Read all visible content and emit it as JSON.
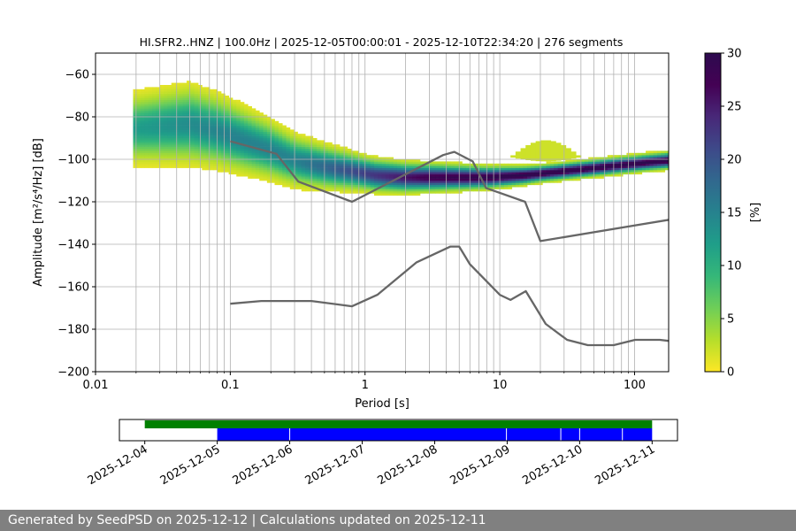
{
  "chart_data": [
    {
      "type": "heatmap",
      "title": "HI.SFR2..HNZ | 100.0Hz | 2025-12-05T00:00:01 - 2025-12-10T22:34:20 | 276 segments",
      "xlabel": "Period [s]",
      "ylabel": "Amplitude [m²/s⁴/Hz] [dB]",
      "x_scale": "log",
      "xlim": [
        0.01,
        179
      ],
      "ylim": [
        -200,
        -50
      ],
      "x_ticks": [
        {
          "value": 0.01,
          "label": "0.01"
        },
        {
          "value": 0.1,
          "label": "0.1"
        },
        {
          "value": 1,
          "label": "1"
        },
        {
          "value": 10,
          "label": "10"
        },
        {
          "value": 100,
          "label": "100"
        }
      ],
      "y_ticks": [
        {
          "value": -200,
          "label": "−200"
        },
        {
          "value": -180,
          "label": "−180"
        },
        {
          "value": -160,
          "label": "−160"
        },
        {
          "value": -140,
          "label": "−140"
        },
        {
          "value": -120,
          "label": "−120"
        },
        {
          "value": -100,
          "label": "−100"
        },
        {
          "value": -80,
          "label": "−80"
        },
        {
          "value": -60,
          "label": "−60"
        }
      ],
      "grid_periods": [
        0.02,
        0.03,
        0.04,
        0.05,
        0.06,
        0.07,
        0.08,
        0.09,
        0.2,
        0.3,
        0.4,
        0.5,
        0.6,
        0.7,
        0.8,
        0.9,
        2,
        3,
        4,
        5,
        6,
        7,
        8,
        9,
        20,
        30,
        40,
        50,
        60,
        70,
        80,
        90
      ],
      "colorbar": {
        "label": "[%]",
        "range": [
          0,
          30
        ],
        "ticks": [
          {
            "value": 0,
            "label": "0"
          },
          {
            "value": 5,
            "label": "5"
          },
          {
            "value": 10,
            "label": "10"
          },
          {
            "value": 15,
            "label": "15"
          },
          {
            "value": 20,
            "label": "20"
          },
          {
            "value": 25,
            "label": "25"
          },
          {
            "value": 30,
            "label": "30"
          }
        ]
      },
      "psd_density": {
        "period_range": [
          0.019,
          179
        ],
        "mode_db": [
          [
            0.019,
            -86
          ],
          [
            0.03,
            -85
          ],
          [
            0.05,
            -84
          ],
          [
            0.08,
            -87
          ],
          [
            0.12,
            -91
          ],
          [
            0.2,
            -96
          ],
          [
            0.3,
            -101
          ],
          [
            0.5,
            -104
          ],
          [
            0.8,
            -106
          ],
          [
            1.2,
            -108
          ],
          [
            2,
            -109
          ],
          [
            4,
            -109
          ],
          [
            8,
            -109
          ],
          [
            15,
            -108
          ],
          [
            30,
            -106
          ],
          [
            60,
            -104
          ],
          [
            120,
            -102
          ],
          [
            179,
            -101
          ]
        ],
        "spread_db": [
          [
            0.019,
            8
          ],
          [
            0.05,
            9
          ],
          [
            0.1,
            8
          ],
          [
            0.3,
            6
          ],
          [
            1,
            4
          ],
          [
            5,
            3
          ],
          [
            20,
            2
          ],
          [
            179,
            2
          ]
        ],
        "peak_percent": [
          [
            0.019,
            12
          ],
          [
            0.05,
            14
          ],
          [
            0.1,
            15
          ],
          [
            0.3,
            15
          ],
          [
            1,
            22
          ],
          [
            3,
            28
          ],
          [
            10,
            30
          ],
          [
            179,
            30
          ]
        ],
        "outlier_region": {
          "period_range": [
            12,
            40
          ],
          "center_db": -97,
          "spread_db": 5,
          "percent": 2
        }
      },
      "noise_models": [
        {
          "name": "high-noise-model",
          "points": [
            [
              0.1,
              -91.5
            ],
            [
              0.22,
              -97.4
            ],
            [
              0.32,
              -110.5
            ],
            [
              0.8,
              -120
            ],
            [
              3.8,
              -98
            ],
            [
              4.6,
              -96.5
            ],
            [
              6.3,
              -101
            ],
            [
              7.9,
              -113.5
            ],
            [
              15.4,
              -120
            ],
            [
              20,
              -138.5
            ],
            [
              179,
              -128.5
            ]
          ]
        },
        {
          "name": "low-noise-model",
          "points": [
            [
              0.1,
              -168
            ],
            [
              0.17,
              -166.7
            ],
            [
              0.4,
              -166.7
            ],
            [
              0.8,
              -169.2
            ],
            [
              1.24,
              -163.7
            ],
            [
              2.4,
              -148.6
            ],
            [
              4.3,
              -141.1
            ],
            [
              5,
              -141.1
            ],
            [
              6,
              -149.4
            ],
            [
              10,
              -163.8
            ],
            [
              12,
              -166.2
            ],
            [
              15.6,
              -162.1
            ],
            [
              21.9,
              -177.5
            ],
            [
              31.6,
              -185
            ],
            [
              45,
              -187.5
            ],
            [
              70,
              -187.5
            ],
            [
              101,
              -185
            ],
            [
              154,
              -185
            ],
            [
              179,
              -185.5
            ]
          ]
        }
      ]
    },
    {
      "type": "timeline",
      "x_ticks": [
        "2025-12-04",
        "2025-12-05",
        "2025-12-06",
        "2025-12-07",
        "2025-12-08",
        "2025-12-09",
        "2025-12-10",
        "2025-12-11"
      ],
      "xlim_days": [
        -0.35,
        7.35
      ],
      "available_data": {
        "color": "#008000",
        "start_day": 0.0,
        "end_day": 7.0
      },
      "psd_coverage": {
        "color": "#0000ff",
        "start_day": 1.0,
        "end_day": 7.0,
        "gaps_day": [
          2.0,
          4.99,
          5.74,
          6.0,
          6.59
        ]
      }
    }
  ],
  "footer": {
    "text": "Generated by SeedPSD on 2025-12-12 | Calculations updated on 2025-12-11"
  }
}
